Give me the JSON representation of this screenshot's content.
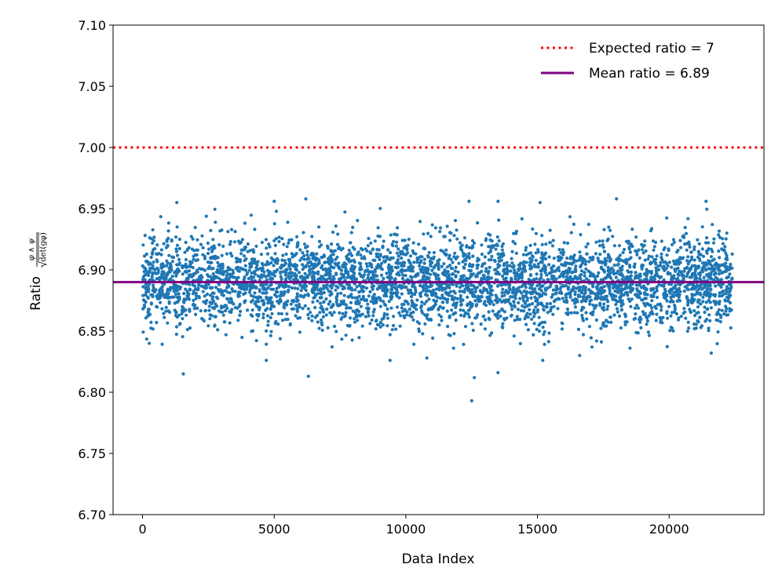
{
  "chart_data": {
    "type": "scatter",
    "title": "",
    "xlabel": "Data Index",
    "ylabel": {
      "prefix": "Ratio",
      "numerator": "φ ∧ ψ",
      "denominator": "√det(g_φ)",
      "denominator_display": "det(gφ)"
    },
    "xlim": [
      -1120,
      23600
    ],
    "ylim": [
      6.7,
      7.1
    ],
    "xticks": [
      0,
      5000,
      10000,
      15000,
      20000
    ],
    "yticks": [
      6.7,
      6.75,
      6.8,
      6.85,
      6.9,
      6.95,
      7.0,
      7.05,
      7.1
    ],
    "ytick_labels": [
      "6.70",
      "6.75",
      "6.80",
      "6.85",
      "6.90",
      "6.95",
      "7.00",
      "7.05",
      "7.10"
    ],
    "grid": false,
    "legend_position": "top-right",
    "series": [
      {
        "name": "",
        "kind": "scatter",
        "color": "#1f77b4",
        "n_points": 22400,
        "x_range": [
          0,
          22400
        ],
        "mean": 6.89,
        "std": 0.018,
        "outliers": [
          {
            "x": 1550,
            "y": 6.815
          },
          {
            "x": 6300,
            "y": 6.813
          },
          {
            "x": 12500,
            "y": 6.793
          },
          {
            "x": 12600,
            "y": 6.812
          },
          {
            "x": 13500,
            "y": 6.816
          },
          {
            "x": 4700,
            "y": 6.826
          },
          {
            "x": 9400,
            "y": 6.826
          },
          {
            "x": 10800,
            "y": 6.828
          },
          {
            "x": 15200,
            "y": 6.826
          },
          {
            "x": 16600,
            "y": 6.83
          },
          {
            "x": 21600,
            "y": 6.832
          },
          {
            "x": 6200,
            "y": 6.958
          },
          {
            "x": 18000,
            "y": 6.958
          },
          {
            "x": 5000,
            "y": 6.956
          },
          {
            "x": 21400,
            "y": 6.956
          },
          {
            "x": 12400,
            "y": 6.956
          },
          {
            "x": 1300,
            "y": 6.955
          },
          {
            "x": 13500,
            "y": 6.956
          },
          {
            "x": 15100,
            "y": 6.955
          }
        ]
      },
      {
        "name": "Expected ratio = 7",
        "kind": "hline",
        "y": 7.0,
        "color": "#ff0000",
        "style": "dotted"
      },
      {
        "name": "Mean ratio = 6.89",
        "kind": "hline",
        "y": 6.89,
        "color": "#800080",
        "style": "solid"
      }
    ]
  }
}
